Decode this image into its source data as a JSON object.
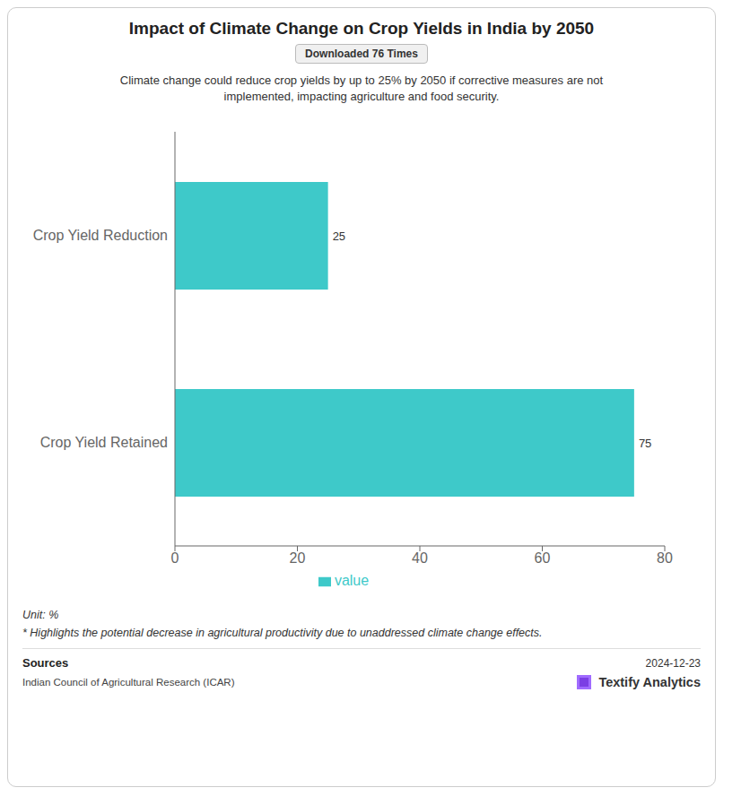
{
  "chart_data": {
    "type": "bar",
    "orientation": "horizontal",
    "title": "Impact of Climate Change on Crop Yields in India by 2050",
    "subtitle": "Downloaded 76 Times",
    "description": "Climate change could reduce crop yields by up to 25% by 2050 if corrective measures are not\nimplemented, impacting agriculture and food security.",
    "categories": [
      "Crop Yield Reduction",
      "Crop Yield Retained"
    ],
    "series": [
      {
        "name": "value",
        "color": "#3EC9C9",
        "values": [
          25,
          75
        ]
      }
    ],
    "xlim": [
      0,
      80
    ],
    "xticks": [
      0,
      20,
      40,
      60,
      80
    ],
    "data_labels": true,
    "grid": false,
    "legend": "bottom",
    "unit_text": "Unit: %",
    "note_text": "* Highlights the potential decrease in agricultural productivity due to unaddressed climate change effects.",
    "sources_label": "Sources",
    "sources_text": "Indian Council of Agricultural Research (ICAR)",
    "date_text": "2024-12-23",
    "brand_text": "Textify Analytics"
  }
}
